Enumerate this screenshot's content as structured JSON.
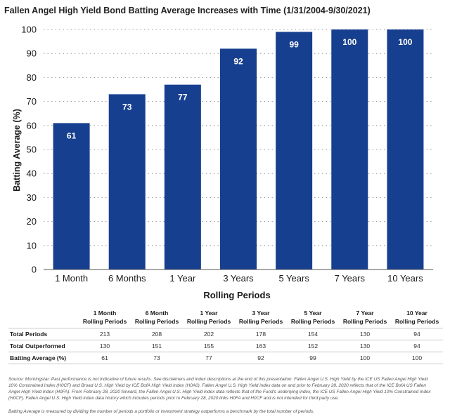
{
  "chart_data": {
    "type": "bar",
    "title": "Fallen Angel High Yield Bond Batting Average Increases with Time (1/31/2004-9/30/2021)",
    "xlabel": "Rolling Periods",
    "ylabel": "Batting Average (%)",
    "categories": [
      "1 Month",
      "6 Months",
      "1 Year",
      "3 Years",
      "5 Years",
      "7 Years",
      "10 Years"
    ],
    "values": [
      61,
      73,
      77,
      92,
      99,
      100,
      100
    ],
    "ylim": [
      0,
      100
    ],
    "yticks": [
      0,
      10,
      20,
      30,
      40,
      50,
      60,
      70,
      80,
      90,
      100
    ],
    "bar_color": "#173f8f",
    "grid": true
  },
  "table": {
    "headers": [
      [
        "1 Month",
        "Rolling Periods"
      ],
      [
        "6 Month",
        "Rolling Periods"
      ],
      [
        "1 Year",
        "Rolling Periods"
      ],
      [
        "3 Year",
        "Rolling Periods"
      ],
      [
        "5 Year",
        "Rolling Periods"
      ],
      [
        "7 Year",
        "Rolling Periods"
      ],
      [
        "10 Year",
        "Rolling Periods"
      ]
    ],
    "rows": [
      {
        "label": "Total Periods",
        "values": [
          "213",
          "208",
          "202",
          "178",
          "154",
          "130",
          "94"
        ]
      },
      {
        "label": "Total Outperformed",
        "values": [
          "130",
          "151",
          "155",
          "163",
          "152",
          "130",
          "94"
        ]
      },
      {
        "label": "Batting Average (%)",
        "values": [
          "61",
          "73",
          "77",
          "92",
          "99",
          "100",
          "100"
        ]
      }
    ]
  },
  "footnotes": {
    "source": "Source: Morningstar. Past performance is not indicative of future results. See disclaimers and index descriptions at the end of this presentation. Fallen Angel U.S. High Yield by the ICE US Fallen Angel High Yield 10% Constrained Index (H0CF) and Broad U.S. High Yield by ICE BofA High Yield Index (H0A0). Fallen Angel U.S. High Yield index data on and prior to February 28, 2020 reflects that of the ICE BofA US Fallen Angel High Yield Index (H0FA). From February 28, 2020 forward, the Fallen Angel U.S. High Yield index data reflects that of the Fund's underlying index, the ICE US Fallen Angel High Yield 10% Constrained Index (H0CF). Fallen Angel U.S. High Yield index data history which includes periods prior to February 28, 2020 links H0FA and H0CF and is not intended for third party use.",
    "definition": "Batting Average is measured by dividing the number of periods a portfolio or investment strategy outperforms a benchmark by the total number of periods."
  }
}
